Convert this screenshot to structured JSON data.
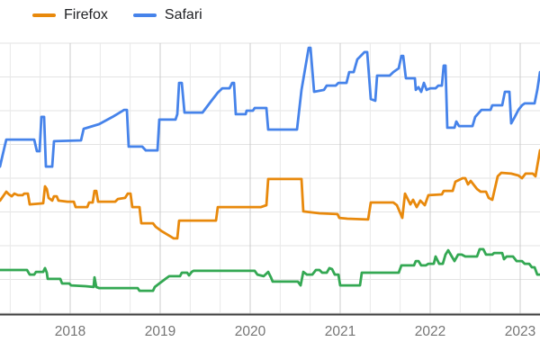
{
  "legend": [
    {
      "label": "Firefox",
      "color": "#e8890c"
    },
    {
      "label": "Safari",
      "color": "#4683ea"
    }
  ],
  "colors": {
    "background": "#ffffff",
    "axis_line": "#3f3f3f",
    "major_gridline": "#cccccc",
    "minor_gridline": "#e9e9e9",
    "horizontal_gridline": "#e3e3e3",
    "tick_label": "#757575",
    "legend_text": "#202124"
  },
  "chart_data": {
    "type": "line",
    "title": "",
    "xlabel": "",
    "ylabel": "",
    "grid": true,
    "legend_position": "top-left",
    "x_axis": {
      "range": [
        2017.22,
        2023.22
      ],
      "tick_years": [
        2018,
        2019,
        2020,
        2021,
        2022,
        2023
      ],
      "tick_labels": [
        "2018",
        "2019",
        "2020",
        "2021",
        "2022",
        "2023"
      ]
    },
    "y_axis": {
      "note": "no numeric labels visible; values are % of plot height (0 = x-axis, 100 = top gridline)",
      "range": [
        0,
        100
      ],
      "gridline_values": [
        0,
        12.5,
        25,
        37.5,
        50,
        62.5,
        75,
        87.5,
        100
      ]
    },
    "series": [
      {
        "name": "green-unlabeled",
        "color": "#34a853",
        "points": [
          [
            2017.22,
            16.0
          ],
          [
            2017.52,
            16.0
          ],
          [
            2017.55,
            14.3
          ],
          [
            2017.6,
            14.3
          ],
          [
            2017.62,
            15.3
          ],
          [
            2017.7,
            15.3
          ],
          [
            2017.72,
            16.7
          ],
          [
            2017.74,
            15.0
          ],
          [
            2017.75,
            12.7
          ],
          [
            2017.89,
            12.7
          ],
          [
            2017.91,
            11.0
          ],
          [
            2017.99,
            11.0
          ],
          [
            2018.01,
            10.3
          ],
          [
            2018.17,
            10.0
          ],
          [
            2018.26,
            9.7
          ],
          [
            2018.27,
            13.3
          ],
          [
            2018.29,
            9.7
          ],
          [
            2018.32,
            9.3
          ],
          [
            2018.75,
            9.3
          ],
          [
            2018.77,
            8.3
          ],
          [
            2018.92,
            8.3
          ],
          [
            2018.94,
            9.7
          ],
          [
            2018.99,
            11.0
          ],
          [
            2019.03,
            12.0
          ],
          [
            2019.07,
            13.0
          ],
          [
            2019.1,
            13.7
          ],
          [
            2019.22,
            13.7
          ],
          [
            2019.24,
            15.0
          ],
          [
            2019.3,
            15.0
          ],
          [
            2019.32,
            14.0
          ],
          [
            2019.35,
            15.3
          ],
          [
            2019.37,
            15.7
          ],
          [
            2020.05,
            15.7
          ],
          [
            2020.08,
            14.3
          ],
          [
            2020.15,
            13.7
          ],
          [
            2020.2,
            15.3
          ],
          [
            2020.23,
            13.3
          ],
          [
            2020.25,
            11.7
          ],
          [
            2020.53,
            11.7
          ],
          [
            2020.56,
            10.3
          ],
          [
            2020.59,
            15.3
          ],
          [
            2020.63,
            14.3
          ],
          [
            2020.69,
            14.3
          ],
          [
            2020.73,
            16.0
          ],
          [
            2020.77,
            16.0
          ],
          [
            2020.8,
            15.0
          ],
          [
            2020.85,
            15.0
          ],
          [
            2020.88,
            16.7
          ],
          [
            2020.91,
            16.3
          ],
          [
            2020.94,
            14.3
          ],
          [
            2020.98,
            14.3
          ],
          [
            2021.0,
            10.3
          ],
          [
            2021.22,
            10.3
          ],
          [
            2021.24,
            15.0
          ],
          [
            2021.65,
            15.0
          ],
          [
            2021.68,
            17.7
          ],
          [
            2021.82,
            17.7
          ],
          [
            2021.84,
            19.3
          ],
          [
            2021.87,
            19.3
          ],
          [
            2021.9,
            17.7
          ],
          [
            2021.95,
            17.7
          ],
          [
            2021.98,
            18.3
          ],
          [
            2022.04,
            18.3
          ],
          [
            2022.06,
            21.0
          ],
          [
            2022.1,
            18.3
          ],
          [
            2022.14,
            18.3
          ],
          [
            2022.17,
            21.7
          ],
          [
            2022.2,
            23.3
          ],
          [
            2022.24,
            21.0
          ],
          [
            2022.27,
            19.3
          ],
          [
            2022.31,
            21.7
          ],
          [
            2022.35,
            21.7
          ],
          [
            2022.39,
            21.0
          ],
          [
            2022.52,
            21.0
          ],
          [
            2022.55,
            23.7
          ],
          [
            2022.59,
            23.7
          ],
          [
            2022.62,
            21.7
          ],
          [
            2022.69,
            21.7
          ],
          [
            2022.71,
            22.3
          ],
          [
            2022.8,
            22.3
          ],
          [
            2022.82,
            20.0
          ],
          [
            2022.85,
            21.0
          ],
          [
            2022.92,
            21.0
          ],
          [
            2022.96,
            19.3
          ],
          [
            2023.02,
            19.3
          ],
          [
            2023.05,
            18.3
          ],
          [
            2023.1,
            18.3
          ],
          [
            2023.13,
            17.0
          ],
          [
            2023.16,
            17.0
          ],
          [
            2023.19,
            14.3
          ],
          [
            2023.22,
            14.3
          ]
        ]
      },
      {
        "name": "Firefox",
        "color": "#e8890c",
        "points": [
          [
            2017.22,
            41.7
          ],
          [
            2017.29,
            45.0
          ],
          [
            2017.32,
            44.0
          ],
          [
            2017.35,
            43.3
          ],
          [
            2017.38,
            44.3
          ],
          [
            2017.42,
            43.7
          ],
          [
            2017.47,
            43.7
          ],
          [
            2017.49,
            44.3
          ],
          [
            2017.53,
            44.3
          ],
          [
            2017.55,
            40.3
          ],
          [
            2017.7,
            40.7
          ],
          [
            2017.72,
            47.0
          ],
          [
            2017.74,
            46.0
          ],
          [
            2017.76,
            42.7
          ],
          [
            2017.8,
            41.7
          ],
          [
            2017.82,
            43.3
          ],
          [
            2017.85,
            43.3
          ],
          [
            2017.87,
            41.7
          ],
          [
            2017.97,
            41.3
          ],
          [
            2018.04,
            41.3
          ],
          [
            2018.06,
            39.3
          ],
          [
            2018.19,
            39.3
          ],
          [
            2018.21,
            41.0
          ],
          [
            2018.25,
            41.0
          ],
          [
            2018.27,
            45.3
          ],
          [
            2018.29,
            45.3
          ],
          [
            2018.31,
            41.3
          ],
          [
            2018.5,
            41.3
          ],
          [
            2018.53,
            42.3
          ],
          [
            2018.61,
            42.7
          ],
          [
            2018.64,
            44.3
          ],
          [
            2018.67,
            44.3
          ],
          [
            2018.69,
            39.3
          ],
          [
            2018.77,
            39.3
          ],
          [
            2018.79,
            33.3
          ],
          [
            2018.92,
            33.3
          ],
          [
            2018.95,
            32.0
          ],
          [
            2019.02,
            30.3
          ],
          [
            2019.12,
            28.3
          ],
          [
            2019.15,
            27.7
          ],
          [
            2019.19,
            27.7
          ],
          [
            2019.21,
            34.3
          ],
          [
            2019.62,
            34.3
          ],
          [
            2019.64,
            39.3
          ],
          [
            2020.12,
            39.3
          ],
          [
            2020.18,
            40.0
          ],
          [
            2020.2,
            49.7
          ],
          [
            2020.57,
            49.7
          ],
          [
            2020.59,
            37.7
          ],
          [
            2020.77,
            37.0
          ],
          [
            2020.97,
            36.7
          ],
          [
            2020.99,
            35.3
          ],
          [
            2021.08,
            35.0
          ],
          [
            2021.31,
            34.7
          ],
          [
            2021.34,
            41.0
          ],
          [
            2021.59,
            41.0
          ],
          [
            2021.63,
            40.0
          ],
          [
            2021.69,
            35.3
          ],
          [
            2021.72,
            44.3
          ],
          [
            2021.78,
            40.3
          ],
          [
            2021.81,
            42.0
          ],
          [
            2021.85,
            39.3
          ],
          [
            2021.89,
            41.7
          ],
          [
            2021.94,
            40.0
          ],
          [
            2021.98,
            43.7
          ],
          [
            2022.13,
            44.0
          ],
          [
            2022.15,
            45.3
          ],
          [
            2022.25,
            45.3
          ],
          [
            2022.28,
            48.7
          ],
          [
            2022.36,
            50.0
          ],
          [
            2022.39,
            50.0
          ],
          [
            2022.42,
            47.7
          ],
          [
            2022.45,
            49.0
          ],
          [
            2022.48,
            47.7
          ],
          [
            2022.52,
            46.0
          ],
          [
            2022.56,
            45.0
          ],
          [
            2022.62,
            45.0
          ],
          [
            2022.65,
            42.7
          ],
          [
            2022.69,
            42.0
          ],
          [
            2022.75,
            50.7
          ],
          [
            2022.79,
            52.0
          ],
          [
            2022.9,
            51.7
          ],
          [
            2022.98,
            51.0
          ],
          [
            2023.02,
            50.0
          ],
          [
            2023.06,
            51.7
          ],
          [
            2023.14,
            51.7
          ],
          [
            2023.17,
            50.7
          ],
          [
            2023.22,
            60.3
          ]
        ]
      },
      {
        "name": "Safari",
        "color": "#4683ea",
        "points": [
          [
            2017.22,
            54.3
          ],
          [
            2017.25,
            58.7
          ],
          [
            2017.29,
            64.3
          ],
          [
            2017.6,
            64.3
          ],
          [
            2017.63,
            60.0
          ],
          [
            2017.66,
            60.0
          ],
          [
            2017.68,
            72.7
          ],
          [
            2017.71,
            72.7
          ],
          [
            2017.73,
            54.3
          ],
          [
            2017.8,
            54.3
          ],
          [
            2017.82,
            63.7
          ],
          [
            2018.12,
            64.0
          ],
          [
            2018.15,
            68.3
          ],
          [
            2018.32,
            70.0
          ],
          [
            2018.47,
            72.7
          ],
          [
            2018.6,
            75.3
          ],
          [
            2018.63,
            75.3
          ],
          [
            2018.65,
            61.7
          ],
          [
            2018.8,
            61.7
          ],
          [
            2018.84,
            60.3
          ],
          [
            2018.97,
            60.3
          ],
          [
            2018.99,
            71.7
          ],
          [
            2019.17,
            71.7
          ],
          [
            2019.19,
            73.7
          ],
          [
            2019.21,
            85.3
          ],
          [
            2019.24,
            85.3
          ],
          [
            2019.27,
            74.3
          ],
          [
            2019.47,
            74.3
          ],
          [
            2019.57,
            78.7
          ],
          [
            2019.64,
            81.7
          ],
          [
            2019.69,
            83.3
          ],
          [
            2019.77,
            83.3
          ],
          [
            2019.8,
            85.3
          ],
          [
            2019.82,
            85.3
          ],
          [
            2019.84,
            73.7
          ],
          [
            2019.95,
            73.7
          ],
          [
            2019.96,
            75.0
          ],
          [
            2020.03,
            75.0
          ],
          [
            2020.05,
            76.0
          ],
          [
            2020.18,
            76.0
          ],
          [
            2020.2,
            68.0
          ],
          [
            2020.52,
            68.0
          ],
          [
            2020.57,
            82.7
          ],
          [
            2020.65,
            98.3
          ],
          [
            2020.67,
            98.3
          ],
          [
            2020.71,
            82.0
          ],
          [
            2020.82,
            82.7
          ],
          [
            2020.85,
            84.3
          ],
          [
            2020.95,
            84.3
          ],
          [
            2020.98,
            85.3
          ],
          [
            2021.07,
            85.3
          ],
          [
            2021.1,
            89.3
          ],
          [
            2021.15,
            89.3
          ],
          [
            2021.19,
            94.0
          ],
          [
            2021.22,
            95.0
          ],
          [
            2021.27,
            96.7
          ],
          [
            2021.3,
            96.7
          ],
          [
            2021.34,
            79.3
          ],
          [
            2021.39,
            78.7
          ],
          [
            2021.41,
            88.0
          ],
          [
            2021.55,
            88.0
          ],
          [
            2021.59,
            89.3
          ],
          [
            2021.65,
            90.7
          ],
          [
            2021.68,
            95.3
          ],
          [
            2021.7,
            95.3
          ],
          [
            2021.73,
            87.0
          ],
          [
            2021.83,
            87.0
          ],
          [
            2021.84,
            82.7
          ],
          [
            2021.87,
            83.7
          ],
          [
            2021.9,
            82.0
          ],
          [
            2021.93,
            85.3
          ],
          [
            2021.96,
            82.7
          ],
          [
            2022.0,
            83.3
          ],
          [
            2022.06,
            83.3
          ],
          [
            2022.09,
            84.3
          ],
          [
            2022.13,
            84.3
          ],
          [
            2022.15,
            91.7
          ],
          [
            2022.17,
            91.7
          ],
          [
            2022.19,
            68.7
          ],
          [
            2022.27,
            68.7
          ],
          [
            2022.29,
            71.0
          ],
          [
            2022.32,
            69.3
          ],
          [
            2022.47,
            69.3
          ],
          [
            2022.5,
            72.7
          ],
          [
            2022.57,
            75.3
          ],
          [
            2022.67,
            75.3
          ],
          [
            2022.69,
            77.0
          ],
          [
            2022.8,
            77.0
          ],
          [
            2022.83,
            82.0
          ],
          [
            2022.88,
            82.0
          ],
          [
            2022.9,
            70.3
          ],
          [
            2022.94,
            72.7
          ],
          [
            2022.98,
            75.3
          ],
          [
            2023.02,
            77.0
          ],
          [
            2023.05,
            77.7
          ],
          [
            2023.16,
            77.7
          ],
          [
            2023.19,
            82.7
          ],
          [
            2023.22,
            89.3
          ]
        ]
      }
    ]
  }
}
